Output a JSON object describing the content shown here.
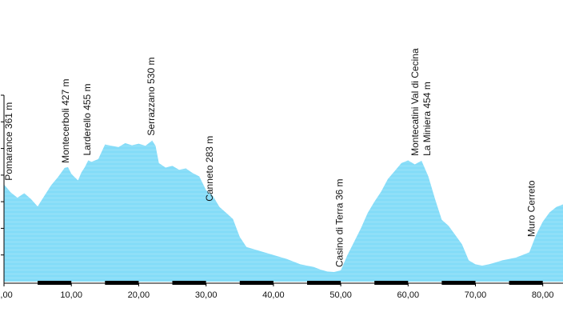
{
  "chart_data": {
    "type": "area",
    "title": "",
    "xlabel": "",
    "ylabel": "",
    "xlim": [
      0,
      83
    ],
    "ylim": [
      0,
      700
    ],
    "x_ticks": [
      {
        "value": 0,
        "label": "0,00"
      },
      {
        "value": 10,
        "label": "10,00"
      },
      {
        "value": 20,
        "label": "20,00"
      },
      {
        "value": 30,
        "label": "30,00"
      },
      {
        "value": 40,
        "label": "40,00"
      },
      {
        "value": 50,
        "label": "50,00"
      },
      {
        "value": 60,
        "label": "60,00"
      },
      {
        "value": 70,
        "label": "70,00"
      },
      {
        "value": 80,
        "label": "80,00"
      }
    ],
    "y_ticks": [
      100,
      200,
      300,
      400,
      500,
      600,
      700
    ],
    "fill_color": "#85dcf8",
    "stripe_color": "#ffffff",
    "scale_bar_color": "#000000",
    "series": [
      {
        "x": [
          0,
          1,
          2,
          3,
          4,
          5,
          6,
          7,
          8,
          9,
          9.5,
          10,
          10.5,
          11,
          11.5,
          12,
          12.5,
          13,
          14,
          15,
          16,
          17,
          18,
          19,
          20,
          21,
          22,
          22.5,
          23,
          24,
          25,
          26,
          27,
          28,
          29,
          30,
          31,
          32,
          33,
          34,
          35,
          36,
          38,
          40,
          42,
          44,
          46,
          47,
          48,
          49,
          50,
          51,
          52,
          53,
          54,
          55,
          56,
          57,
          58,
          59,
          60,
          61,
          62,
          63,
          64,
          65,
          66,
          67,
          68,
          69,
          70,
          71,
          72,
          73,
          74,
          75,
          76,
          77,
          78,
          79,
          80,
          81,
          82,
          83
        ],
        "values": [
          365,
          335,
          315,
          332,
          310,
          282,
          322,
          362,
          392,
          427,
          430,
          405,
          392,
          380,
          410,
          430,
          455,
          450,
          460,
          515,
          510,
          505,
          520,
          512,
          518,
          510,
          530,
          510,
          445,
          428,
          435,
          420,
          425,
          408,
          395,
          343,
          322,
          280,
          258,
          235,
          168,
          130,
          115,
          100,
          85,
          65,
          55,
          45,
          38,
          36,
          42,
          100,
          150,
          200,
          258,
          300,
          338,
          385,
          415,
          445,
          455,
          440,
          454,
          395,
          310,
          232,
          210,
          175,
          140,
          80,
          65,
          60,
          65,
          72,
          80,
          85,
          90,
          100,
          110,
          175,
          225,
          260,
          280,
          290
        ]
      }
    ],
    "annotations": [
      {
        "x": 1.2,
        "y": 361,
        "text": "Pomarance 361 m"
      },
      {
        "x": 9.6,
        "y": 427,
        "text": "Montecerboli 427 m"
      },
      {
        "x": 12.8,
        "y": 455,
        "text": "Larderello 455 m"
      },
      {
        "x": 22.3,
        "y": 530,
        "text": "Serrazzano 530 m"
      },
      {
        "x": 31.0,
        "y": 283,
        "text": "Canneto 283 m"
      },
      {
        "x": 50.3,
        "y": 36,
        "text": "Casino di Terra 36 m"
      },
      {
        "x": 61.5,
        "y": 454,
        "text": "Montecatini Val di Cecina"
      },
      {
        "x": 63.3,
        "y": 454,
        "text": "La Miniera 454 m"
      },
      {
        "x": 78.8,
        "y": 150,
        "text": "Muro Cerreto"
      }
    ]
  }
}
